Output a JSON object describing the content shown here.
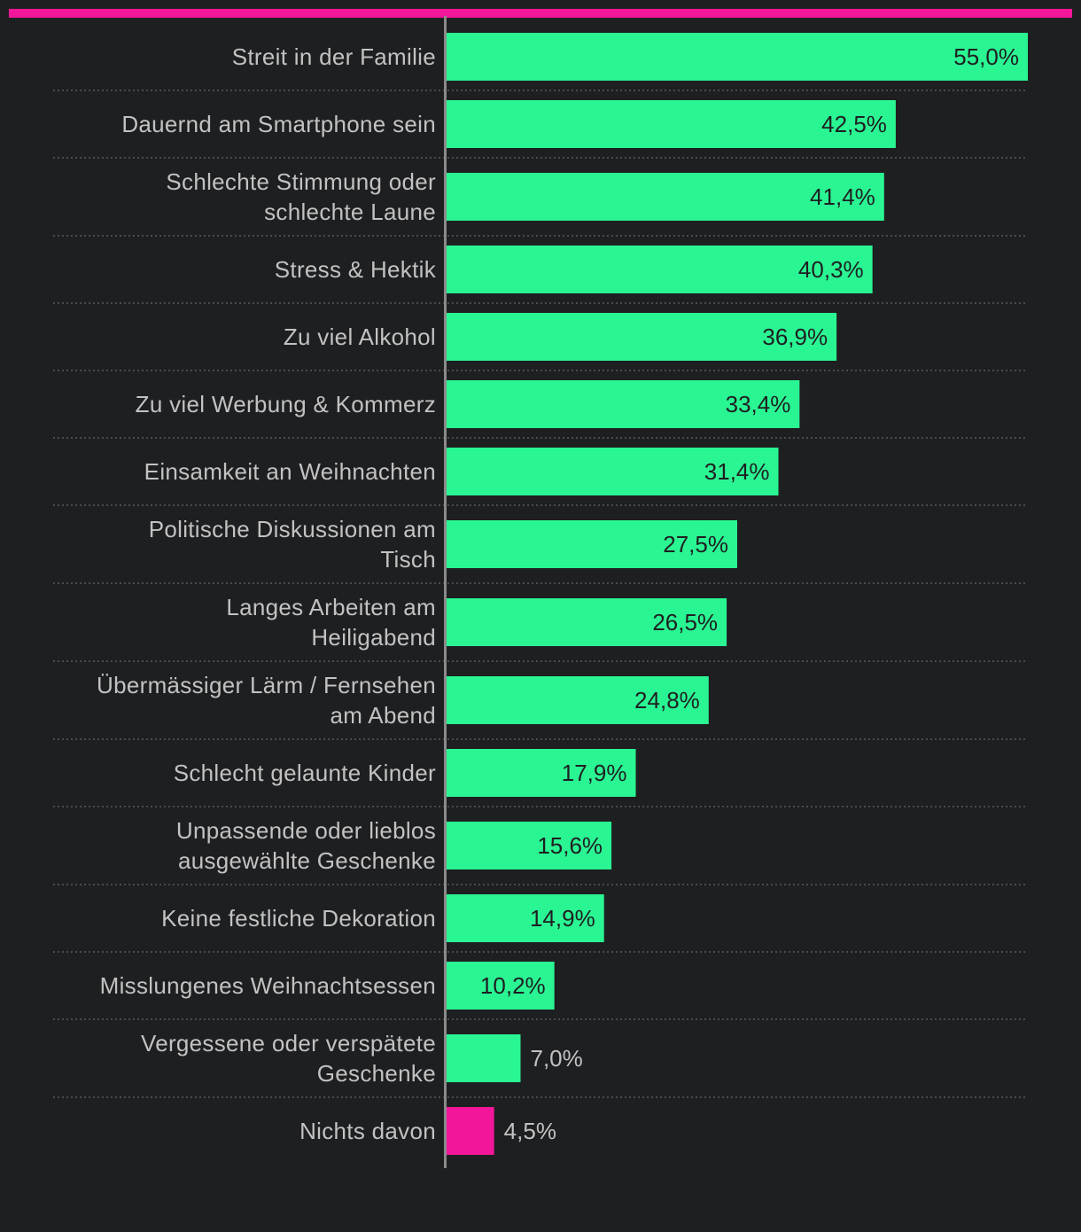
{
  "chart_data": {
    "type": "bar",
    "orientation": "horizontal",
    "categories": [
      "Streit in der Familie",
      "Dauernd am Smartphone sein",
      "Schlechte Stimmung oder schlechte Laune",
      "Stress & Hektik",
      "Zu viel Alkohol",
      "Zu viel Werbung & Kommerz",
      "Einsamkeit an Weihnachten",
      "Politische Diskussionen am Tisch",
      "Langes Arbeiten am Heiligabend",
      "Übermässiger Lärm / Fernsehen am Abend",
      "Schlecht gelaunte Kinder",
      "Unpassende oder lieblos ausgewählte Geschenke",
      "Keine festliche Dekoration",
      "Misslungenes Weihnachtsessen",
      "Vergessene oder verspätete Geschenke",
      "Nichts davon"
    ],
    "label_lines": [
      [
        "Streit in der Familie"
      ],
      [
        "Dauernd am Smartphone sein"
      ],
      [
        "Schlechte Stimmung oder",
        "schlechte Laune"
      ],
      [
        "Stress & Hektik"
      ],
      [
        "Zu viel Alkohol"
      ],
      [
        "Zu viel Werbung & Kommerz"
      ],
      [
        "Einsamkeit an Weihnachten"
      ],
      [
        "Politische Diskussionen am",
        "Tisch"
      ],
      [
        "Langes Arbeiten am",
        "Heiligabend"
      ],
      [
        "Übermässiger Lärm / Fernsehen",
        "am Abend"
      ],
      [
        "Schlecht gelaunte Kinder"
      ],
      [
        "Unpassende oder lieblos",
        "ausgewählte Geschenke"
      ],
      [
        "Keine festliche Dekoration"
      ],
      [
        "Misslungenes Weihnachtsessen"
      ],
      [
        "Vergessene oder verspätete",
        "Geschenke"
      ],
      [
        "Nichts davon"
      ]
    ],
    "values": [
      55.0,
      42.5,
      41.4,
      40.3,
      36.9,
      33.4,
      31.4,
      27.5,
      26.5,
      24.8,
      17.9,
      15.6,
      14.9,
      10.2,
      7.0,
      4.5
    ],
    "value_labels": [
      "55,0%",
      "42,5%",
      "41,4%",
      "40,3%",
      "36,9%",
      "33,4%",
      "31,4%",
      "27,5%",
      "26,5%",
      "24,8%",
      "17,9%",
      "15,6%",
      "14,9%",
      "10,2%",
      "7,0%",
      "4,5%"
    ],
    "highlight_index": 15,
    "xlim": [
      0,
      55.0
    ],
    "grid": false,
    "colors": {
      "bar": "#2af593",
      "highlight": "#f2169a",
      "top_rule": "#f2169a",
      "background": "#1e1f21",
      "label": "#c2c2c2",
      "value_inside": "#1e1f21",
      "value_outside": "#c2c2c2",
      "separator": "#5a5a5a",
      "axis": "#8a8a8a"
    }
  }
}
